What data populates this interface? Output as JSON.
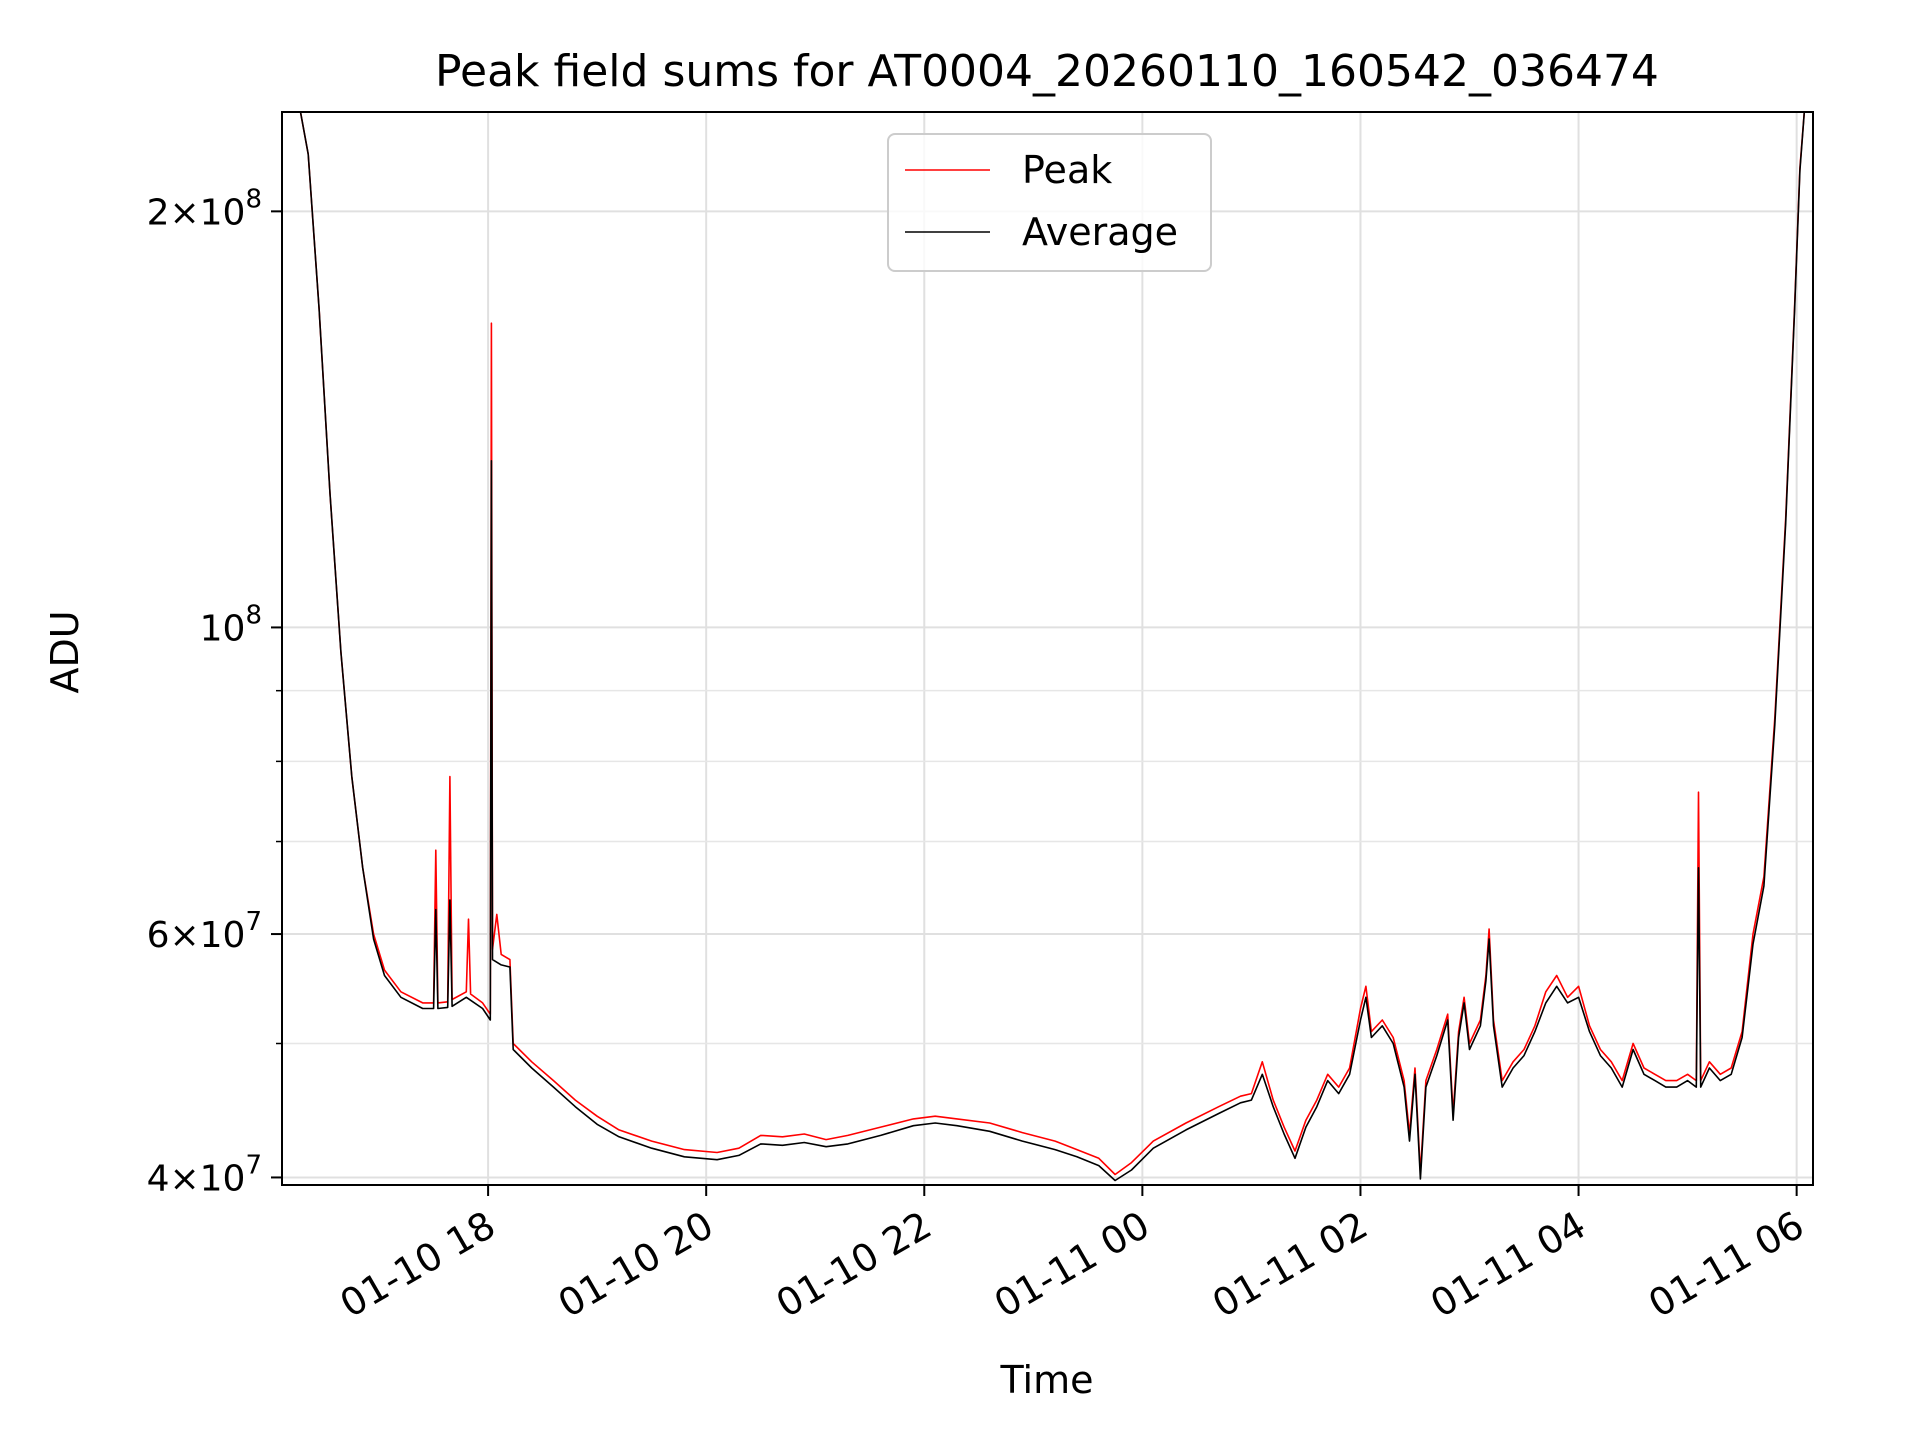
{
  "chart_data": {
    "type": "line",
    "title": "Peak field sums for AT0004_20260110_160542_036474",
    "xlabel": "Time",
    "ylabel": "ADU",
    "yscale": "log",
    "ylim": [
      39500000,
      236000000
    ],
    "xlim_hours": [
      16.11,
      30.15
    ],
    "grid": true,
    "legend_position": "upper center",
    "x_ticks": [
      {
        "hour": 18,
        "label": "01-10 18"
      },
      {
        "hour": 20,
        "label": "01-10 20"
      },
      {
        "hour": 22,
        "label": "01-10 22"
      },
      {
        "hour": 24,
        "label": "01-11 00"
      },
      {
        "hour": 26,
        "label": "01-11 02"
      },
      {
        "hour": 28,
        "label": "01-11 04"
      },
      {
        "hour": 30,
        "label": "01-11 06"
      }
    ],
    "y_ticks": [
      {
        "value": 40000000,
        "mant": "4",
        "exp": "7"
      },
      {
        "value": 60000000,
        "mant": "6",
        "exp": "7"
      },
      {
        "value": 100000000,
        "mant": "",
        "exp": "8"
      },
      {
        "value": 200000000,
        "mant": "2",
        "exp": "8"
      }
    ],
    "y_minor_ticks": [
      50000000,
      70000000,
      80000000,
      90000000
    ],
    "series": [
      {
        "name": "Peak",
        "color": "#ff0000",
        "points": [
          [
            16.11,
            236000000
          ],
          [
            16.28,
            236000000
          ],
          [
            16.35,
            220000000
          ],
          [
            16.45,
            170000000
          ],
          [
            16.55,
            125000000
          ],
          [
            16.65,
            96000000
          ],
          [
            16.75,
            78000000
          ],
          [
            16.85,
            67000000
          ],
          [
            16.95,
            60000000
          ],
          [
            17.05,
            56500000
          ],
          [
            17.2,
            54500000
          ],
          [
            17.4,
            53500000
          ],
          [
            17.5,
            53500000
          ],
          [
            17.52,
            69000000
          ],
          [
            17.54,
            53500000
          ],
          [
            17.63,
            53600000
          ],
          [
            17.65,
            78000000
          ],
          [
            17.67,
            53800000
          ],
          [
            17.8,
            54500000
          ],
          [
            17.82,
            61500000
          ],
          [
            17.84,
            54300000
          ],
          [
            17.95,
            53500000
          ],
          [
            18.02,
            52500000
          ],
          [
            18.03,
            166000000
          ],
          [
            18.04,
            58500000
          ],
          [
            18.08,
            62000000
          ],
          [
            18.12,
            58000000
          ],
          [
            18.2,
            57500000
          ],
          [
            18.23,
            50000000
          ],
          [
            18.4,
            48500000
          ],
          [
            18.6,
            47000000
          ],
          [
            18.8,
            45500000
          ],
          [
            19.0,
            44300000
          ],
          [
            19.2,
            43300000
          ],
          [
            19.5,
            42500000
          ],
          [
            19.8,
            41900000
          ],
          [
            20.1,
            41700000
          ],
          [
            20.3,
            42000000
          ],
          [
            20.5,
            42900000
          ],
          [
            20.7,
            42800000
          ],
          [
            20.9,
            43000000
          ],
          [
            21.1,
            42600000
          ],
          [
            21.3,
            42900000
          ],
          [
            21.6,
            43500000
          ],
          [
            21.9,
            44100000
          ],
          [
            22.1,
            44300000
          ],
          [
            22.3,
            44100000
          ],
          [
            22.6,
            43800000
          ],
          [
            22.9,
            43100000
          ],
          [
            23.2,
            42500000
          ],
          [
            23.4,
            41900000
          ],
          [
            23.6,
            41300000
          ],
          [
            23.75,
            40200000
          ],
          [
            23.9,
            41000000
          ],
          [
            24.1,
            42500000
          ],
          [
            24.4,
            43800000
          ],
          [
            24.7,
            45000000
          ],
          [
            24.9,
            45800000
          ],
          [
            25.0,
            46000000
          ],
          [
            25.1,
            48500000
          ],
          [
            25.2,
            45500000
          ],
          [
            25.3,
            43500000
          ],
          [
            25.4,
            41800000
          ],
          [
            25.5,
            44000000
          ],
          [
            25.6,
            45500000
          ],
          [
            25.7,
            47500000
          ],
          [
            25.8,
            46500000
          ],
          [
            25.9,
            48000000
          ],
          [
            26.0,
            53000000
          ],
          [
            26.05,
            55000000
          ],
          [
            26.1,
            51000000
          ],
          [
            26.2,
            52000000
          ],
          [
            26.3,
            50500000
          ],
          [
            26.4,
            47000000
          ],
          [
            26.45,
            43000000
          ],
          [
            26.5,
            48000000
          ],
          [
            26.55,
            40300000
          ],
          [
            26.6,
            47000000
          ],
          [
            26.7,
            49500000
          ],
          [
            26.8,
            52500000
          ],
          [
            26.85,
            44500000
          ],
          [
            26.9,
            51000000
          ],
          [
            26.95,
            54000000
          ],
          [
            27.0,
            50000000
          ],
          [
            27.1,
            52000000
          ],
          [
            27.15,
            56000000
          ],
          [
            27.18,
            60500000
          ],
          [
            27.22,
            52000000
          ],
          [
            27.3,
            47000000
          ],
          [
            27.4,
            48500000
          ],
          [
            27.5,
            49500000
          ],
          [
            27.6,
            51500000
          ],
          [
            27.7,
            54500000
          ],
          [
            27.8,
            56000000
          ],
          [
            27.9,
            54000000
          ],
          [
            28.0,
            55000000
          ],
          [
            28.1,
            51500000
          ],
          [
            28.2,
            49500000
          ],
          [
            28.3,
            48500000
          ],
          [
            28.4,
            47000000
          ],
          [
            28.5,
            50000000
          ],
          [
            28.6,
            48000000
          ],
          [
            28.7,
            47500000
          ],
          [
            28.8,
            47000000
          ],
          [
            28.9,
            47000000
          ],
          [
            29.0,
            47500000
          ],
          [
            29.08,
            47000000
          ],
          [
            29.1,
            76000000
          ],
          [
            29.12,
            47000000
          ],
          [
            29.2,
            48500000
          ],
          [
            29.3,
            47500000
          ],
          [
            29.4,
            48000000
          ],
          [
            29.5,
            51000000
          ],
          [
            29.6,
            60000000
          ],
          [
            29.7,
            66000000
          ],
          [
            29.8,
            86000000
          ],
          [
            29.9,
            120000000
          ],
          [
            29.98,
            170000000
          ],
          [
            30.03,
            215000000
          ],
          [
            30.07,
            236000000
          ],
          [
            30.15,
            236000000
          ]
        ]
      },
      {
        "name": "Average",
        "color": "#000000",
        "points": [
          [
            16.11,
            236000000
          ],
          [
            16.28,
            236000000
          ],
          [
            16.35,
            220000000
          ],
          [
            16.45,
            170000000
          ],
          [
            16.55,
            125000000
          ],
          [
            16.65,
            96000000
          ],
          [
            16.75,
            78000000
          ],
          [
            16.85,
            67000000
          ],
          [
            16.95,
            59500000
          ],
          [
            17.05,
            56000000
          ],
          [
            17.2,
            54000000
          ],
          [
            17.4,
            53000000
          ],
          [
            17.5,
            53000000
          ],
          [
            17.52,
            62500000
          ],
          [
            17.54,
            53000000
          ],
          [
            17.63,
            53100000
          ],
          [
            17.65,
            63500000
          ],
          [
            17.67,
            53200000
          ],
          [
            17.8,
            54000000
          ],
          [
            17.95,
            53000000
          ],
          [
            18.02,
            52000000
          ],
          [
            18.03,
            132000000
          ],
          [
            18.04,
            57500000
          ],
          [
            18.12,
            57000000
          ],
          [
            18.2,
            56800000
          ],
          [
            18.23,
            49500000
          ],
          [
            18.4,
            48000000
          ],
          [
            18.6,
            46500000
          ],
          [
            18.8,
            45000000
          ],
          [
            19.0,
            43700000
          ],
          [
            19.2,
            42800000
          ],
          [
            19.5,
            42000000
          ],
          [
            19.8,
            41400000
          ],
          [
            20.1,
            41200000
          ],
          [
            20.3,
            41500000
          ],
          [
            20.5,
            42300000
          ],
          [
            20.7,
            42200000
          ],
          [
            20.9,
            42400000
          ],
          [
            21.1,
            42100000
          ],
          [
            21.3,
            42300000
          ],
          [
            21.6,
            42900000
          ],
          [
            21.9,
            43600000
          ],
          [
            22.1,
            43800000
          ],
          [
            22.3,
            43600000
          ],
          [
            22.6,
            43200000
          ],
          [
            22.9,
            42500000
          ],
          [
            23.2,
            41900000
          ],
          [
            23.4,
            41400000
          ],
          [
            23.6,
            40800000
          ],
          [
            23.75,
            39800000
          ],
          [
            23.9,
            40500000
          ],
          [
            24.1,
            42000000
          ],
          [
            24.4,
            43300000
          ],
          [
            24.7,
            44500000
          ],
          [
            24.9,
            45300000
          ],
          [
            25.0,
            45500000
          ],
          [
            25.1,
            47500000
          ],
          [
            25.2,
            45000000
          ],
          [
            25.3,
            43000000
          ],
          [
            25.4,
            41300000
          ],
          [
            25.5,
            43500000
          ],
          [
            25.6,
            45000000
          ],
          [
            25.7,
            47000000
          ],
          [
            25.8,
            46000000
          ],
          [
            25.9,
            47500000
          ],
          [
            26.0,
            52000000
          ],
          [
            26.05,
            54000000
          ],
          [
            26.1,
            50500000
          ],
          [
            26.2,
            51500000
          ],
          [
            26.3,
            50000000
          ],
          [
            26.4,
            46500000
          ],
          [
            26.45,
            42500000
          ],
          [
            26.5,
            47500000
          ],
          [
            26.55,
            39900000
          ],
          [
            26.6,
            46500000
          ],
          [
            26.7,
            49000000
          ],
          [
            26.8,
            52000000
          ],
          [
            26.85,
            44000000
          ],
          [
            26.9,
            50500000
          ],
          [
            26.95,
            53500000
          ],
          [
            27.0,
            49500000
          ],
          [
            27.1,
            51500000
          ],
          [
            27.15,
            55500000
          ],
          [
            27.18,
            59500000
          ],
          [
            27.22,
            51500000
          ],
          [
            27.3,
            46500000
          ],
          [
            27.4,
            48000000
          ],
          [
            27.5,
            49000000
          ],
          [
            27.6,
            51000000
          ],
          [
            27.7,
            53500000
          ],
          [
            27.8,
            55000000
          ],
          [
            27.9,
            53500000
          ],
          [
            28.0,
            54000000
          ],
          [
            28.1,
            51000000
          ],
          [
            28.2,
            49000000
          ],
          [
            28.3,
            48000000
          ],
          [
            28.4,
            46500000
          ],
          [
            28.5,
            49500000
          ],
          [
            28.6,
            47500000
          ],
          [
            28.7,
            47000000
          ],
          [
            28.8,
            46500000
          ],
          [
            28.9,
            46500000
          ],
          [
            29.0,
            47000000
          ],
          [
            29.08,
            46500000
          ],
          [
            29.1,
            67000000
          ],
          [
            29.12,
            46500000
          ],
          [
            29.2,
            48000000
          ],
          [
            29.3,
            47000000
          ],
          [
            29.4,
            47500000
          ],
          [
            29.5,
            50500000
          ],
          [
            29.6,
            59000000
          ],
          [
            29.7,
            65000000
          ],
          [
            29.8,
            85000000
          ],
          [
            29.9,
            119000000
          ],
          [
            29.98,
            169000000
          ],
          [
            30.03,
            214000000
          ],
          [
            30.07,
            236000000
          ],
          [
            30.15,
            236000000
          ]
        ]
      }
    ]
  }
}
